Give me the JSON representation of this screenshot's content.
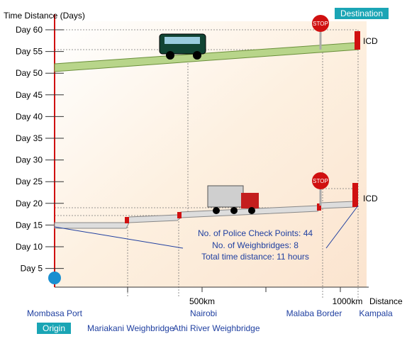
{
  "header": {
    "axis_title": "Time Distance (Days)",
    "destination": "Destination",
    "origin": "Origin"
  },
  "y_labels": [
    "Day 60",
    "Day 55",
    "Day 50",
    "Day 45",
    "Day 40",
    "Day 35",
    "Day 30",
    "Day 25",
    "Day 20",
    "Day 15",
    "Day 10",
    "Day  5"
  ],
  "x_labels": {
    "km500": "500km",
    "km1000": "1000km",
    "axis": "Distance"
  },
  "places": {
    "mombasa": "Mombasa Port",
    "nairobi": "Nairobi",
    "malaba": "Malaba Border",
    "kampala": "Kampala",
    "mariakani": "Mariakani Weighbridge",
    "athi": "Athi River Weighbridge"
  },
  "end_labels": [
    "ICD",
    "ICD"
  ],
  "stop": "STOP",
  "notes": [
    "No. of Police Check Points: 44",
    "No. of Weighbridges: 8",
    "Total time distance: 11 hours"
  ]
}
